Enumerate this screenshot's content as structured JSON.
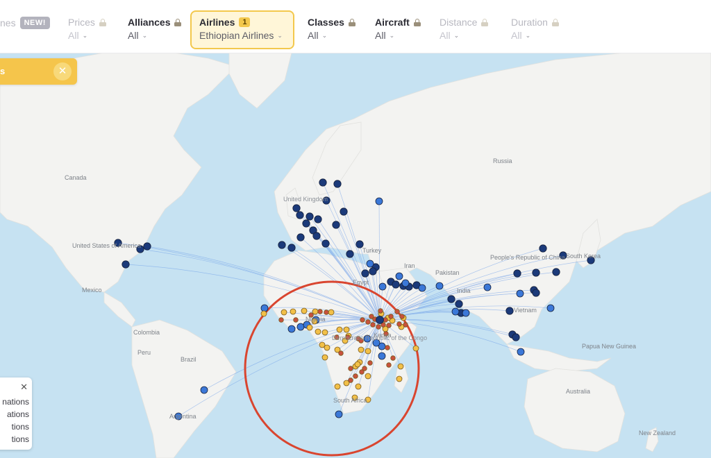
{
  "filters": [
    {
      "key": "routes",
      "label": "nes",
      "badge": "NEW!",
      "value": "",
      "muted": true,
      "locked": false
    },
    {
      "key": "prices",
      "label": "Prices",
      "value": "All",
      "muted": true,
      "locked": true
    },
    {
      "key": "alliances",
      "label": "Alliances",
      "value": "All",
      "muted": false,
      "locked": true
    },
    {
      "key": "airlines",
      "label": "Airlines",
      "count": "1",
      "value": "Ethiopian Airlines",
      "muted": false,
      "active": true
    },
    {
      "key": "classes",
      "label": "Classes",
      "value": "All",
      "muted": false,
      "locked": true
    },
    {
      "key": "aircraft",
      "label": "Aircraft",
      "value": "All",
      "muted": false,
      "locked": true
    },
    {
      "key": "distance",
      "label": "Distance",
      "value": "All",
      "muted": true,
      "locked": true
    },
    {
      "key": "duration",
      "label": "Duration",
      "value": "All",
      "muted": true,
      "locked": true
    }
  ],
  "toast": {
    "text": "s",
    "close_icon": "close-icon"
  },
  "legend": {
    "close_icon": "close-icon",
    "items": [
      "nations",
      "ations",
      "tions",
      "tions"
    ]
  },
  "map": {
    "labels": {
      "russia": "Russia",
      "canada": "Canada",
      "united_kingdom": "United Kingdom",
      "united_states": "United States of America",
      "mexico": "Mexico",
      "colombia": "Colombia",
      "peru": "Peru",
      "brazil": "Brazil",
      "argentina": "Argentina",
      "turkey": "Turkey",
      "iran": "Iran",
      "egypt": "Egypt",
      "pakistan": "Pakistan",
      "india": "India",
      "china": "People's Republic of China",
      "korea": "South Korea",
      "vietnam": "Vietnam",
      "nigeria": "Nigeria",
      "dr_congo": "Democratic Republic of the Congo",
      "kenya": "Kenya",
      "south_africa": "South Africa",
      "png": "Papua New Guinea",
      "australia": "Australia",
      "new_zealand": "New Zealand"
    },
    "hub": "Addis Ababa",
    "colors": {
      "ocean": "#c6e2f2",
      "land": "#f3f3f1",
      "route": "#6b9ce8",
      "dark_blue": "#1b3a7a",
      "bright_blue": "#3b78d8",
      "yellow": "#f2c048",
      "red": "#c8513d",
      "circle": "#d9452f"
    }
  }
}
